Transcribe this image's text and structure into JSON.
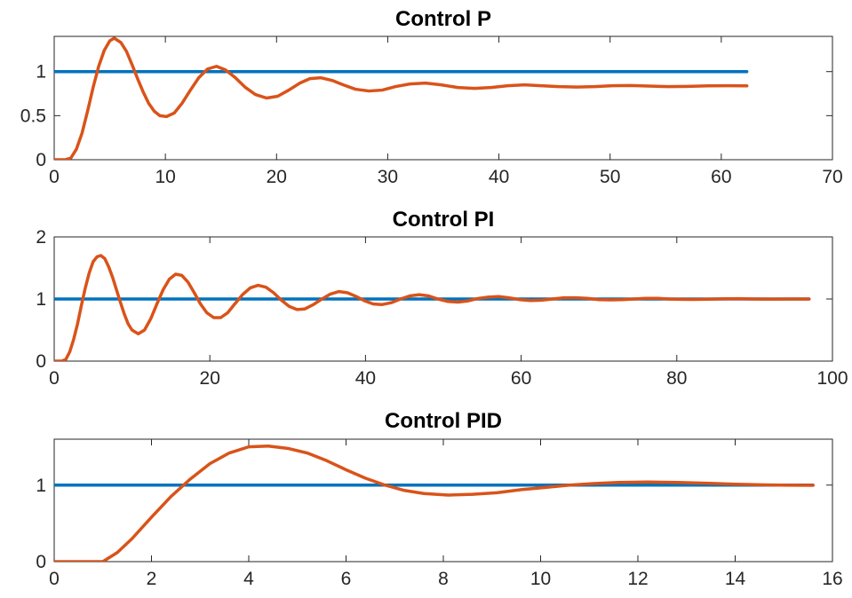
{
  "chart_data": [
    {
      "type": "line",
      "title": "Control P",
      "xlim": [
        0,
        70
      ],
      "ylim": [
        0,
        1.4
      ],
      "xticks": [
        0,
        10,
        20,
        30,
        40,
        50,
        60,
        70
      ],
      "xtick_labels": [
        "0",
        "10",
        "20",
        "30",
        "40",
        "50",
        "60",
        "70"
      ],
      "yticks": [
        0,
        0.5,
        1
      ],
      "ytick_labels": [
        "0",
        "0.5",
        "1"
      ],
      "grid": false,
      "series": [
        {
          "color": "#0072BD",
          "points": [
            [
              0,
              1
            ],
            [
              62.3,
              1
            ]
          ]
        },
        {
          "color": "#D95319",
          "points": [
            [
              0,
              0
            ],
            [
              1,
              0
            ],
            [
              1.5,
              0.02
            ],
            [
              2,
              0.12
            ],
            [
              2.5,
              0.3
            ],
            [
              3,
              0.55
            ],
            [
              3.5,
              0.82
            ],
            [
              4,
              1.06
            ],
            [
              4.5,
              1.24
            ],
            [
              5,
              1.35
            ],
            [
              5.4,
              1.38
            ],
            [
              6,
              1.33
            ],
            [
              6.5,
              1.23
            ],
            [
              7,
              1.08
            ],
            [
              7.5,
              0.92
            ],
            [
              8,
              0.77
            ],
            [
              8.5,
              0.64
            ],
            [
              9,
              0.55
            ],
            [
              9.5,
              0.5
            ],
            [
              10.1,
              0.49
            ],
            [
              10.8,
              0.53
            ],
            [
              11.5,
              0.64
            ],
            [
              12.2,
              0.78
            ],
            [
              13,
              0.93
            ],
            [
              13.8,
              1.03
            ],
            [
              14.6,
              1.06
            ],
            [
              15.4,
              1.02
            ],
            [
              16.3,
              0.93
            ],
            [
              17.2,
              0.82
            ],
            [
              18.1,
              0.74
            ],
            [
              19.1,
              0.7
            ],
            [
              20.1,
              0.72
            ],
            [
              21.1,
              0.79
            ],
            [
              22.1,
              0.87
            ],
            [
              23,
              0.92
            ],
            [
              24,
              0.93
            ],
            [
              25,
              0.9
            ],
            [
              26,
              0.85
            ],
            [
              27.1,
              0.8
            ],
            [
              28.3,
              0.78
            ],
            [
              29.5,
              0.79
            ],
            [
              30.7,
              0.83
            ],
            [
              32,
              0.86
            ],
            [
              33.4,
              0.87
            ],
            [
              34.8,
              0.85
            ],
            [
              36.3,
              0.82
            ],
            [
              37.8,
              0.81
            ],
            [
              39.3,
              0.82
            ],
            [
              40.8,
              0.84
            ],
            [
              42.3,
              0.85
            ],
            [
              43.8,
              0.84
            ],
            [
              45.4,
              0.83
            ],
            [
              47,
              0.825
            ],
            [
              48.6,
              0.83
            ],
            [
              50.2,
              0.84
            ],
            [
              51.8,
              0.842
            ],
            [
              53.5,
              0.836
            ],
            [
              55.2,
              0.83
            ],
            [
              57,
              0.832
            ],
            [
              58.8,
              0.838
            ],
            [
              60.6,
              0.84
            ],
            [
              62.3,
              0.838
            ]
          ]
        }
      ]
    },
    {
      "type": "line",
      "title": "Control PI",
      "xlim": [
        0,
        100
      ],
      "ylim": [
        0,
        2
      ],
      "xticks": [
        0,
        20,
        40,
        60,
        80,
        100
      ],
      "xtick_labels": [
        "0",
        "20",
        "40",
        "60",
        "80",
        "100"
      ],
      "yticks": [
        0,
        1,
        2
      ],
      "ytick_labels": [
        "0",
        "1",
        "2"
      ],
      "grid": false,
      "series": [
        {
          "color": "#0072BD",
          "points": [
            [
              0,
              1
            ],
            [
              97,
              1
            ]
          ]
        },
        {
          "color": "#D95319",
          "points": [
            [
              0,
              0
            ],
            [
              1,
              0
            ],
            [
              1.5,
              0.03
            ],
            [
              2,
              0.15
            ],
            [
              2.5,
              0.35
            ],
            [
              3,
              0.6
            ],
            [
              3.5,
              0.9
            ],
            [
              4,
              1.18
            ],
            [
              4.5,
              1.42
            ],
            [
              5,
              1.6
            ],
            [
              5.5,
              1.68
            ],
            [
              6,
              1.7
            ],
            [
              6.5,
              1.65
            ],
            [
              7,
              1.52
            ],
            [
              7.5,
              1.35
            ],
            [
              8,
              1.15
            ],
            [
              8.5,
              0.95
            ],
            [
              9,
              0.76
            ],
            [
              9.5,
              0.6
            ],
            [
              10,
              0.5
            ],
            [
              10.8,
              0.44
            ],
            [
              11.6,
              0.5
            ],
            [
              12.4,
              0.68
            ],
            [
              13.2,
              0.92
            ],
            [
              14,
              1.15
            ],
            [
              14.8,
              1.32
            ],
            [
              15.6,
              1.4
            ],
            [
              16.4,
              1.38
            ],
            [
              17.2,
              1.27
            ],
            [
              18,
              1.1
            ],
            [
              18.8,
              0.92
            ],
            [
              19.6,
              0.78
            ],
            [
              20.5,
              0.7
            ],
            [
              21.4,
              0.7
            ],
            [
              22.3,
              0.78
            ],
            [
              23.2,
              0.92
            ],
            [
              24.2,
              1.07
            ],
            [
              25.2,
              1.18
            ],
            [
              26.2,
              1.22
            ],
            [
              27.2,
              1.19
            ],
            [
              28.2,
              1.1
            ],
            [
              29.2,
              0.98
            ],
            [
              30.2,
              0.88
            ],
            [
              31.2,
              0.83
            ],
            [
              32.2,
              0.84
            ],
            [
              33.3,
              0.91
            ],
            [
              34.4,
              1.0
            ],
            [
              35.5,
              1.08
            ],
            [
              36.6,
              1.12
            ],
            [
              37.7,
              1.1
            ],
            [
              38.8,
              1.04
            ],
            [
              39.9,
              0.97
            ],
            [
              41,
              0.92
            ],
            [
              42.1,
              0.91
            ],
            [
              43.3,
              0.94
            ],
            [
              44.5,
              1.0
            ],
            [
              45.7,
              1.05
            ],
            [
              46.9,
              1.07
            ],
            [
              48.1,
              1.05
            ],
            [
              49.3,
              1.0
            ],
            [
              50.6,
              0.96
            ],
            [
              51.9,
              0.95
            ],
            [
              53.2,
              0.97
            ],
            [
              54.5,
              1.01
            ],
            [
              55.8,
              1.03
            ],
            [
              57.1,
              1.04
            ],
            [
              58.4,
              1.02
            ],
            [
              59.8,
              0.99
            ],
            [
              61.2,
              0.975
            ],
            [
              62.6,
              0.98
            ],
            [
              64,
              1.0
            ],
            [
              65.5,
              1.02
            ],
            [
              67,
              1.02
            ],
            [
              68.5,
              1.01
            ],
            [
              70,
              0.99
            ],
            [
              71.5,
              0.985
            ],
            [
              73,
              0.99
            ],
            [
              74.5,
              1.0
            ],
            [
              76,
              1.01
            ],
            [
              77.5,
              1.01
            ],
            [
              79,
              1.0
            ],
            [
              80.5,
              0.995
            ],
            [
              82,
              0.992
            ],
            [
              84,
              0.997
            ],
            [
              86,
              1.004
            ],
            [
              88,
              1.005
            ],
            [
              90,
              1.0
            ],
            [
              92,
              0.998
            ],
            [
              94.5,
              1.0
            ],
            [
              97,
              1.0
            ]
          ]
        }
      ]
    },
    {
      "type": "line",
      "title": "Control PID",
      "xlim": [
        0,
        16
      ],
      "ylim": [
        0,
        1.6
      ],
      "xticks": [
        0,
        2,
        4,
        6,
        8,
        10,
        12,
        14,
        16
      ],
      "xtick_labels": [
        "0",
        "2",
        "4",
        "6",
        "8",
        "10",
        "12",
        "14",
        "16"
      ],
      "yticks": [
        0,
        1
      ],
      "ytick_labels": [
        "0",
        "1"
      ],
      "grid": false,
      "series": [
        {
          "color": "#0072BD",
          "points": [
            [
              0,
              1
            ],
            [
              15.6,
              1
            ]
          ]
        },
        {
          "color": "#D95319",
          "points": [
            [
              0,
              0
            ],
            [
              1,
              0
            ],
            [
              1.3,
              0.12
            ],
            [
              1.6,
              0.3
            ],
            [
              2,
              0.58
            ],
            [
              2.4,
              0.85
            ],
            [
              2.8,
              1.08
            ],
            [
              3.2,
              1.28
            ],
            [
              3.6,
              1.42
            ],
            [
              4,
              1.5
            ],
            [
              4.4,
              1.51
            ],
            [
              4.8,
              1.48
            ],
            [
              5.2,
              1.42
            ],
            [
              5.6,
              1.32
            ],
            [
              6,
              1.2
            ],
            [
              6.4,
              1.09
            ],
            [
              6.8,
              1.0
            ],
            [
              7.2,
              0.93
            ],
            [
              7.6,
              0.89
            ],
            [
              8.1,
              0.87
            ],
            [
              8.6,
              0.88
            ],
            [
              9.1,
              0.9
            ],
            [
              9.6,
              0.94
            ],
            [
              10.1,
              0.97
            ],
            [
              10.6,
              1.0
            ],
            [
              11.1,
              1.02
            ],
            [
              11.6,
              1.035
            ],
            [
              12.2,
              1.04
            ],
            [
              12.8,
              1.035
            ],
            [
              13.4,
              1.025
            ],
            [
              14,
              1.012
            ],
            [
              14.6,
              1.003
            ],
            [
              15.1,
              0.998
            ],
            [
              15.6,
              0.997
            ]
          ]
        }
      ]
    }
  ]
}
